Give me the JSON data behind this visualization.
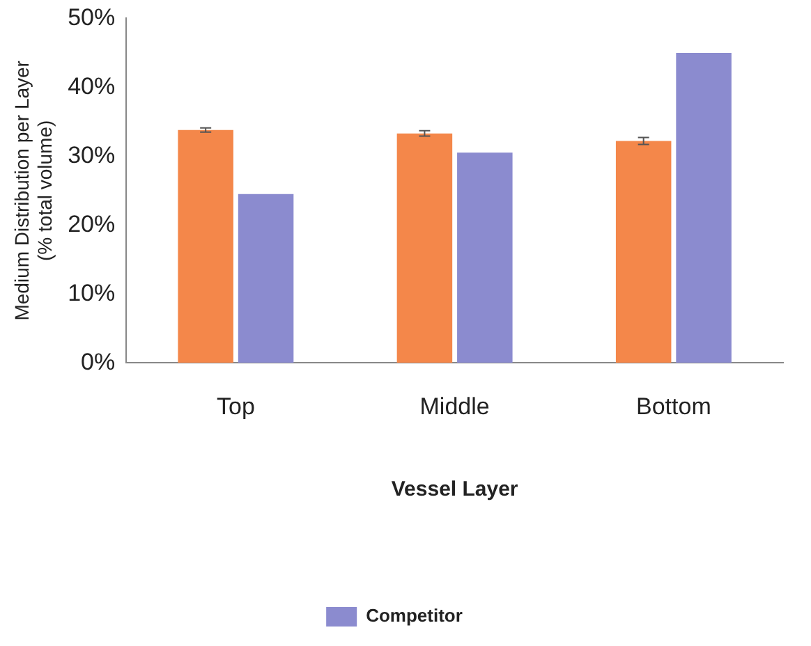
{
  "chart_data": {
    "type": "bar",
    "xlabel": "Vessel Layer",
    "ylabel": "Medium Distribution per Layer (% total volume)",
    "categories": [
      "Top",
      "Middle",
      "Bottom"
    ],
    "series": [
      {
        "color": "#f4874a",
        "values": [
          33.8,
          33.3,
          32.2
        ],
        "errors": [
          0.3,
          0.4,
          0.5
        ]
      },
      {
        "name": "Competitor",
        "color": "#8b8bcf",
        "values": [
          24.5,
          30.5,
          45.0
        ]
      }
    ],
    "ylim": [
      0,
      50
    ],
    "yticks": [
      {
        "value": 0,
        "label": "0%"
      },
      {
        "value": 10,
        "label": "10%"
      },
      {
        "value": 20,
        "label": "20%"
      },
      {
        "value": 30,
        "label": "30%"
      },
      {
        "value": 40,
        "label": "40%"
      },
      {
        "value": 50,
        "label": "50%"
      }
    ],
    "grid": false,
    "legend": "bottom"
  }
}
